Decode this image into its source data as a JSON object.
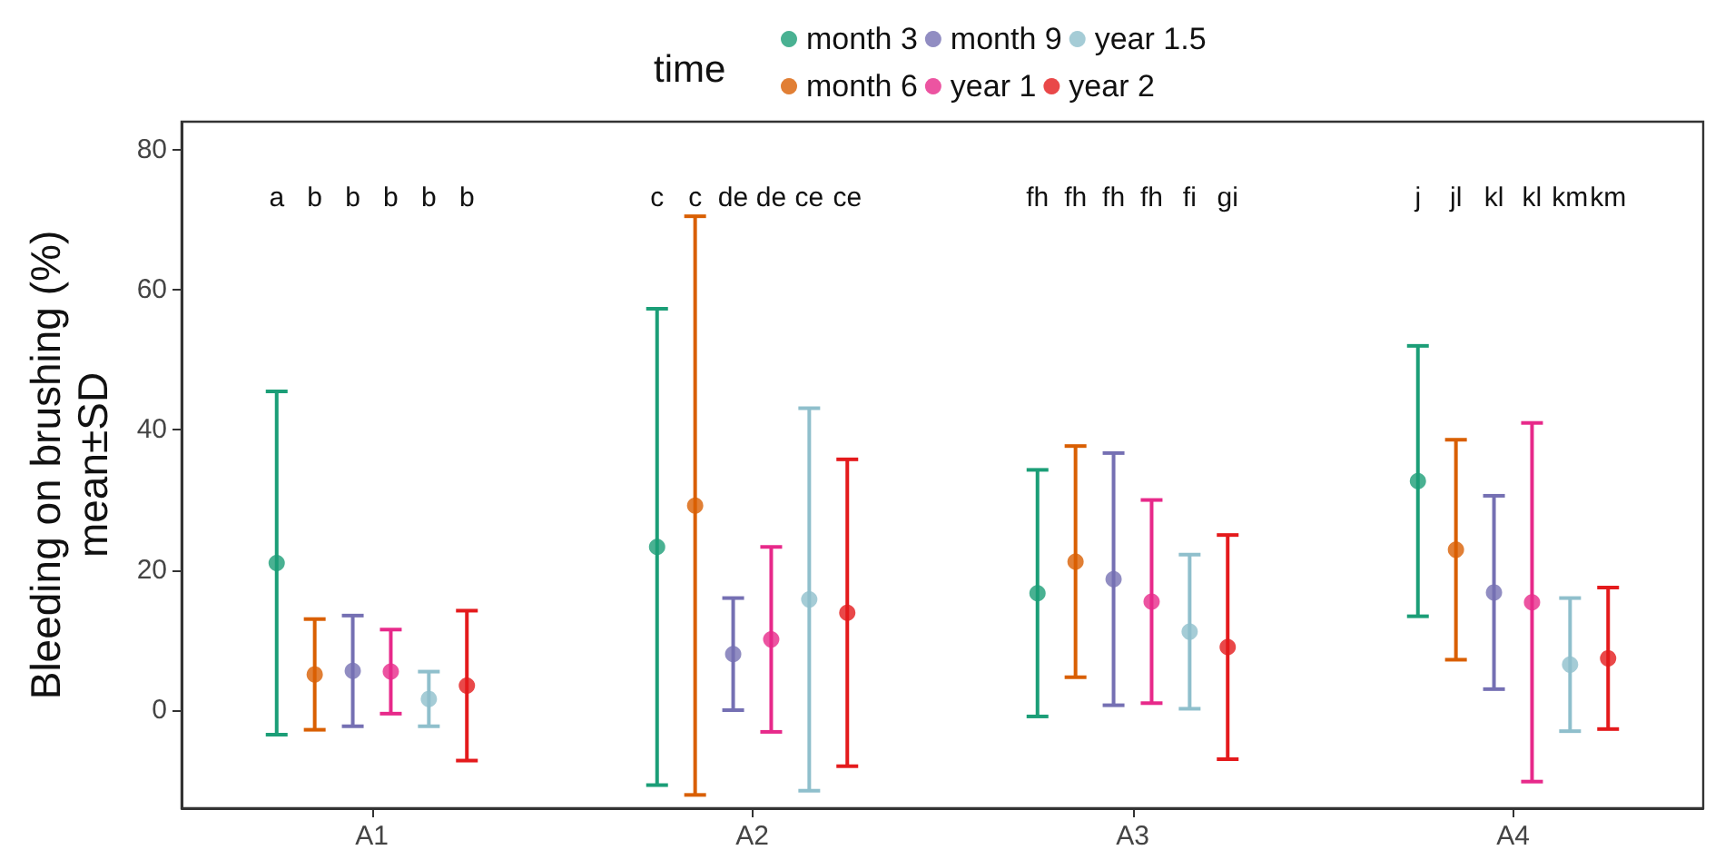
{
  "chart_data": {
    "type": "scatter",
    "ylabel": "Bleeding on brushing (%)\nmean±SD",
    "legend_title": "time",
    "legend": "top",
    "grid": false,
    "marker": "circle",
    "categories": [
      "A1",
      "A2",
      "A3",
      "A4"
    ],
    "ylim": [
      -14,
      84
    ],
    "yticks": [
      0,
      20,
      40,
      60,
      80
    ],
    "series": [
      {
        "name": "month 3",
        "color": "#1b9e77",
        "values": [
          21,
          23.3,
          16.7,
          32.7
        ],
        "errors": [
          24.5,
          34,
          17.6,
          19.3
        ]
      },
      {
        "name": "month 6",
        "color": "#d95f02",
        "values": [
          5.1,
          29.2,
          21.2,
          22.9
        ],
        "errors": [
          7.9,
          41.3,
          16.5,
          15.7
        ]
      },
      {
        "name": "month 9",
        "color": "#7570b3",
        "values": [
          5.6,
          8,
          18.7,
          16.8
        ],
        "errors": [
          7.9,
          8,
          18,
          13.8
        ]
      },
      {
        "name": "year 1",
        "color": "#e7298a",
        "values": [
          5.5,
          10.1,
          15.5,
          15.4
        ],
        "errors": [
          6,
          13.2,
          14.5,
          25.6
        ]
      },
      {
        "name": "year 1.5",
        "color": "#8fbfcc",
        "values": [
          1.6,
          15.8,
          11.2,
          6.5
        ],
        "errors": [
          3.9,
          27.3,
          11,
          9.5
        ]
      },
      {
        "name": "year 2",
        "color": "#e41a1c",
        "values": [
          3.5,
          13.9,
          9,
          7.4
        ],
        "errors": [
          10.7,
          21.9,
          16,
          10.1
        ]
      }
    ],
    "annotations": [
      "a",
      "b",
      "b",
      "b",
      "b",
      "b",
      "c",
      "c",
      "de",
      "de",
      "ce",
      "ce",
      "fh",
      "fh",
      "fh",
      "fh",
      "fi",
      "gi",
      "j",
      "jl",
      "kl",
      "kl",
      "km",
      "km"
    ]
  }
}
